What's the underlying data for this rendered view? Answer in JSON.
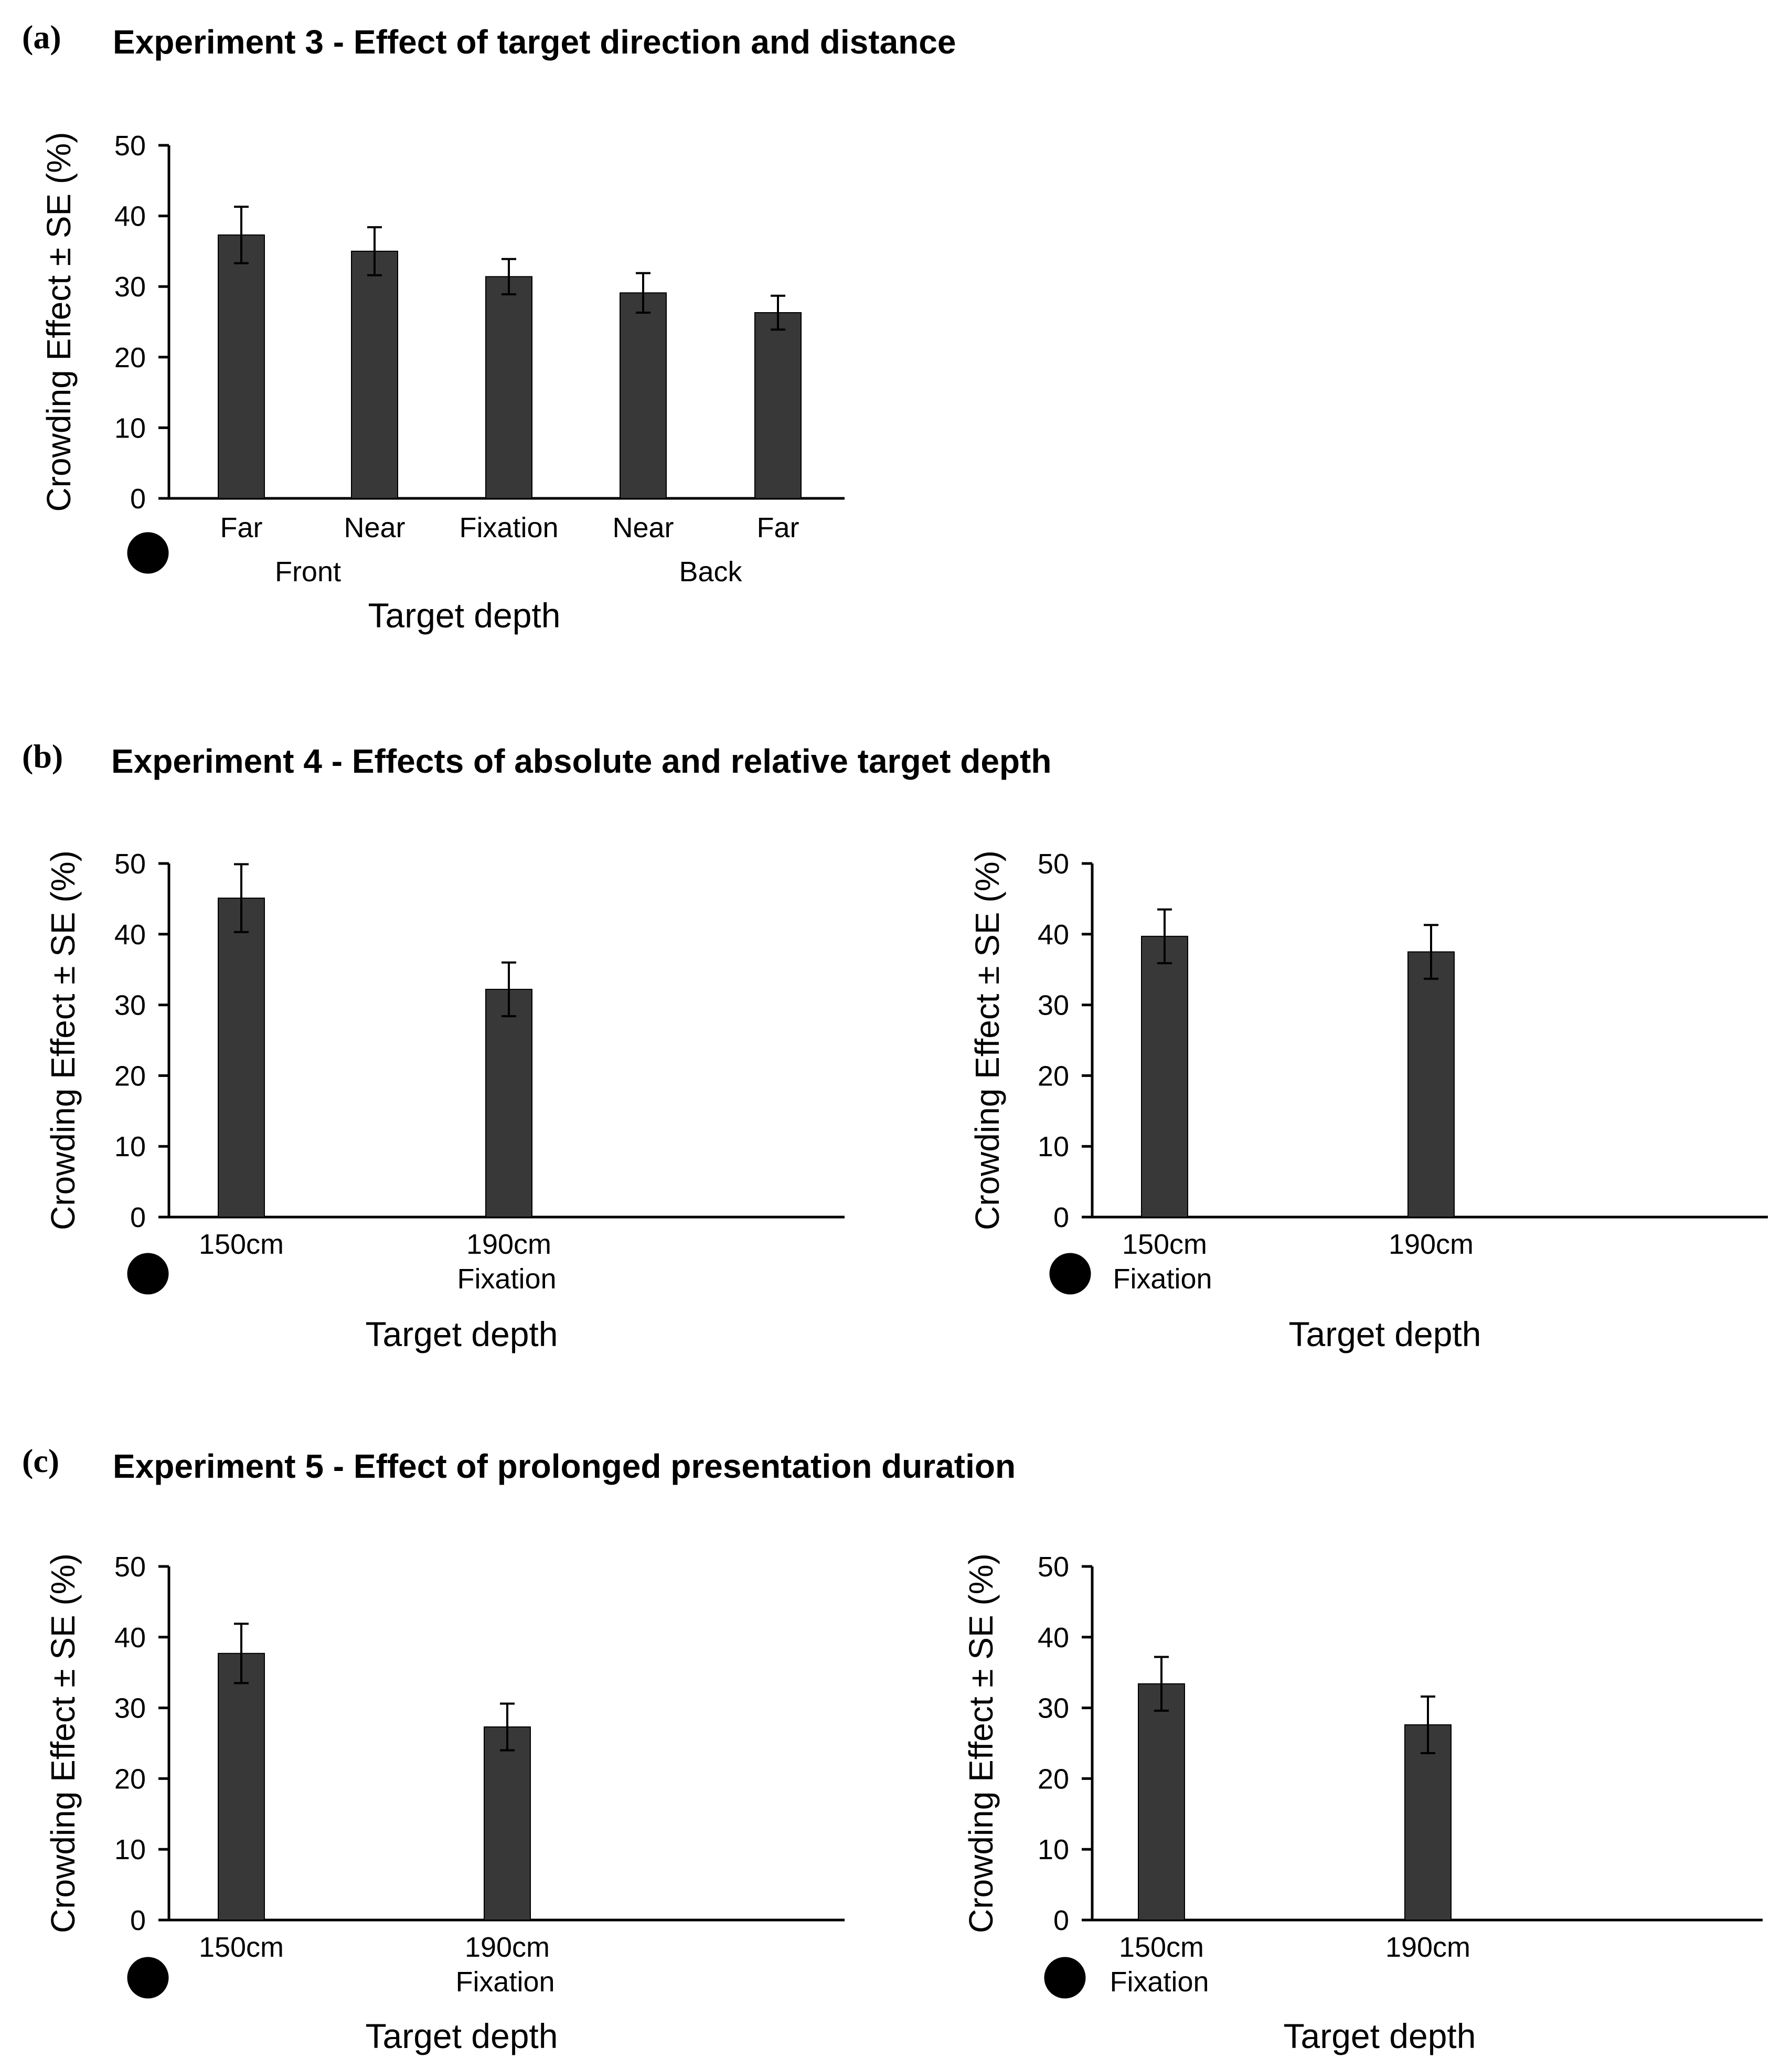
{
  "panels": [
    {
      "letter": "(a)",
      "title": "Experiment 3 - Effect of target direction and distance"
    },
    {
      "letter": "(b)",
      "title": "Experiment 4 - Effects of absolute and relative target depth"
    },
    {
      "letter": "(c)",
      "title": "Experiment 5 - Effect of prolonged presentation duration"
    }
  ],
  "colors": {
    "bar": "#383838",
    "axis": "#000000"
  },
  "icon": "eye-icon",
  "chart_data": [
    {
      "id": "a",
      "type": "bar",
      "title": "Experiment 3 - Effect of target direction and distance",
      "ylabel": "Crowding Effect ± SE (%)",
      "xlabel": "Target depth",
      "ylim": [
        0,
        50
      ],
      "yticks": [
        0,
        10,
        20,
        30,
        40,
        50
      ],
      "categories": [
        "Far",
        "Near",
        "Fixation",
        "Near",
        "Far"
      ],
      "values": [
        37.3,
        35.0,
        31.4,
        29.1,
        26.3
      ],
      "errors": [
        4.0,
        3.4,
        2.5,
        2.8,
        2.4
      ],
      "group_labels": [
        {
          "text": "Front",
          "at": 0.5
        },
        {
          "text": "Back",
          "at": 3.5
        }
      ],
      "fixation_marker": null
    },
    {
      "id": "b1",
      "type": "bar",
      "title": "Experiment 4 - Effects of absolute and relative target depth",
      "ylabel": "Crowding Effect ± SE (%)",
      "xlabel": "Target depth",
      "ylim": [
        0,
        50
      ],
      "yticks": [
        0,
        10,
        20,
        30,
        40,
        50
      ],
      "categories": [
        "150cm",
        "190cm"
      ],
      "values": [
        45.1,
        32.2
      ],
      "errors": [
        4.8,
        3.8
      ],
      "group_labels": [],
      "fixation_marker": {
        "text": "Fixation",
        "index": 1
      }
    },
    {
      "id": "b2",
      "type": "bar",
      "title": "Experiment 4 - Effects of absolute and relative target depth",
      "ylabel": "Crowding Effect ± SE (%)",
      "xlabel": "Target depth",
      "ylim": [
        0,
        50
      ],
      "yticks": [
        0,
        10,
        20,
        30,
        40,
        50
      ],
      "categories": [
        "150cm",
        "190cm"
      ],
      "values": [
        39.7,
        37.5
      ],
      "errors": [
        3.8,
        3.8
      ],
      "group_labels": [],
      "fixation_marker": {
        "text": "Fixation",
        "index": 0
      }
    },
    {
      "id": "c1",
      "type": "bar",
      "title": "Experiment 5 - Effect of prolonged presentation duration",
      "ylabel": "Crowding Effect ± SE (%)",
      "xlabel": "Target depth",
      "ylim": [
        0,
        50
      ],
      "yticks": [
        0,
        10,
        20,
        30,
        40,
        50
      ],
      "categories": [
        "150cm",
        "190cm"
      ],
      "values": [
        37.7,
        27.3
      ],
      "errors": [
        4.2,
        3.3
      ],
      "group_labels": [],
      "fixation_marker": {
        "text": "Fixation",
        "index": 1
      }
    },
    {
      "id": "c2",
      "type": "bar",
      "title": "Experiment 5 - Effect of prolonged presentation duration",
      "ylabel": "Crowding Effect ± SE (%)",
      "xlabel": "Target depth",
      "ylim": [
        0,
        50
      ],
      "yticks": [
        0,
        10,
        20,
        30,
        40,
        50
      ],
      "categories": [
        "150cm",
        "190cm"
      ],
      "values": [
        33.4,
        27.6
      ],
      "errors": [
        3.8,
        4.0
      ],
      "group_labels": [],
      "fixation_marker": {
        "text": "Fixation",
        "index": 0
      }
    }
  ]
}
